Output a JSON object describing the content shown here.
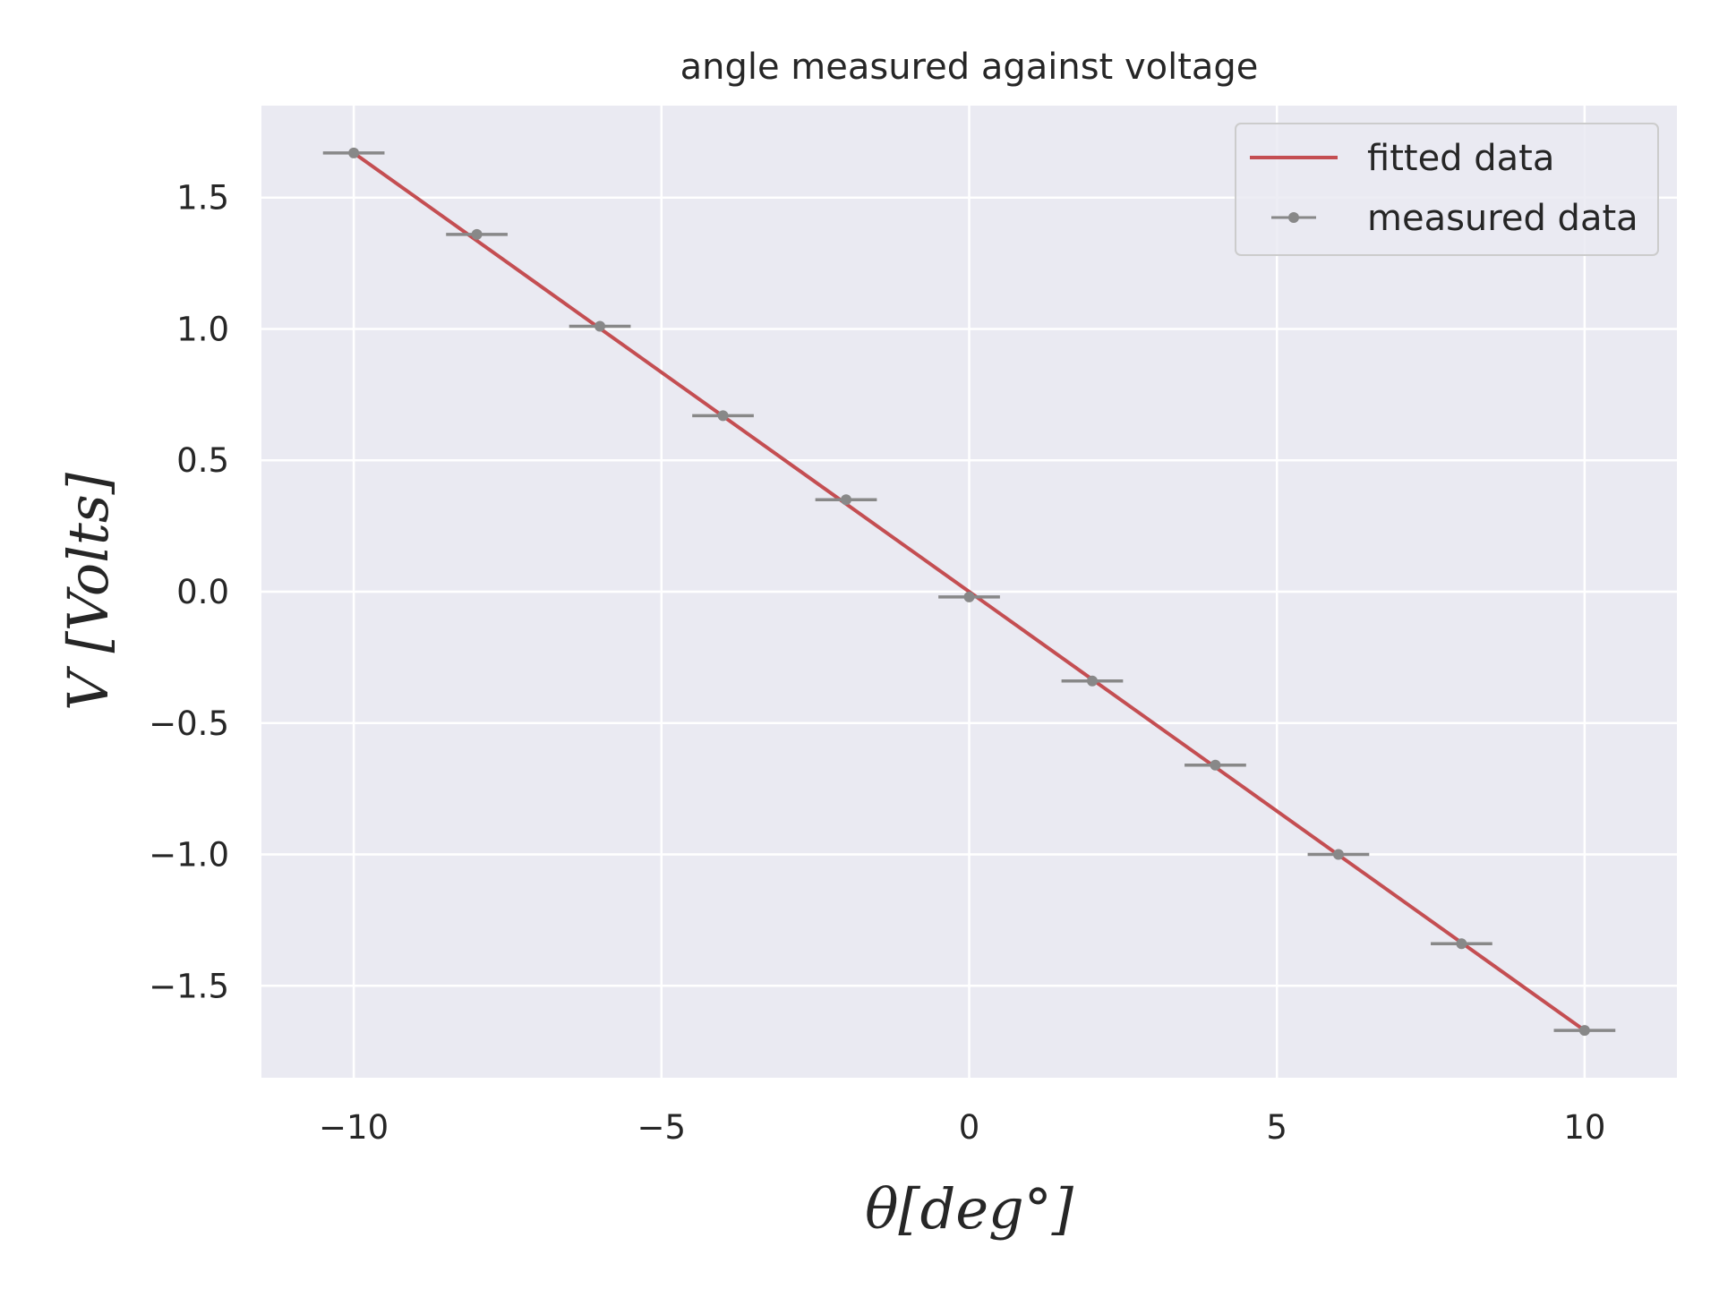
{
  "chart_data": {
    "type": "line",
    "title": "angle measured against voltage",
    "xlabel": "θ[deg°]",
    "ylabel": "V [Volts]",
    "xlim": [
      -11.5,
      11.5
    ],
    "ylim": [
      -1.85,
      1.85
    ],
    "x_ticks": [
      -10,
      -5,
      0,
      5,
      10
    ],
    "x_tick_labels": [
      "−10",
      "−5",
      "0",
      "5",
      "10"
    ],
    "y_ticks": [
      1.5,
      1.0,
      0.5,
      0.0,
      -0.5,
      -1.0,
      -1.5
    ],
    "y_tick_labels": [
      "1.5",
      "1.0",
      "0.5",
      "0.0",
      "−0.5",
      "−1.0",
      "−1.5"
    ],
    "grid": true,
    "legend_position": "top-right",
    "series": [
      {
        "name": "fitted data",
        "style": "line",
        "color": "#c44e52",
        "x": [
          -10,
          10
        ],
        "y": [
          1.67,
          -1.67
        ]
      },
      {
        "name": "measured data",
        "style": "errorbar",
        "color": "#888888",
        "x": [
          -10,
          -8,
          -6,
          -4,
          -2,
          0,
          2,
          4,
          6,
          8,
          10
        ],
        "y": [
          1.67,
          1.36,
          1.01,
          0.67,
          0.35,
          -0.02,
          -0.34,
          -0.66,
          -1.0,
          -1.34,
          -1.67
        ],
        "xerr": 0.5
      }
    ]
  }
}
